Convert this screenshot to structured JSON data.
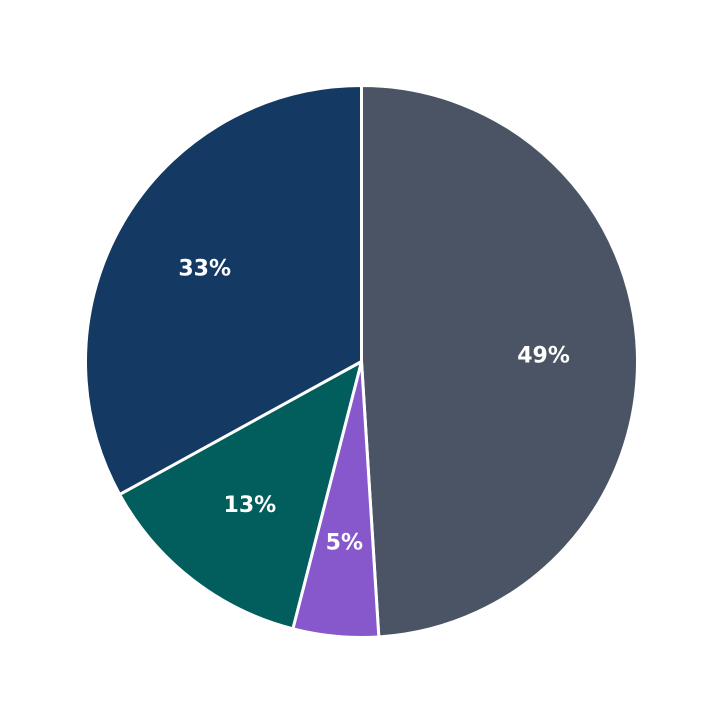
{
  "chart_data": {
    "type": "pie",
    "title": "",
    "start_angle_deg": 90,
    "direction": "clockwise",
    "slices": [
      {
        "value": 49,
        "label": "49%",
        "color": "#4A5465"
      },
      {
        "value": 5,
        "label": "5%",
        "color": "#8658CC"
      },
      {
        "value": 13,
        "label": "13%",
        "color": "#025E5C"
      },
      {
        "value": 33,
        "label": "33%",
        "color": "#143962"
      }
    ]
  }
}
